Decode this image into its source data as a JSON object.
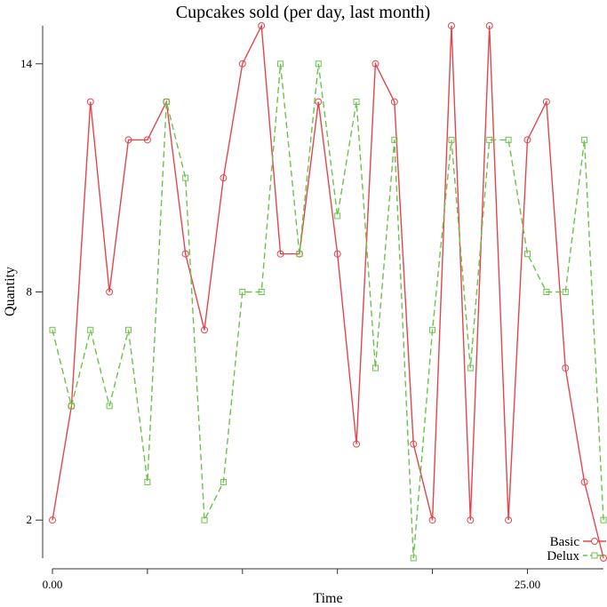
{
  "chart_data": {
    "type": "line",
    "title": "Cupcakes sold (per day, last month)",
    "xlabel": "Time",
    "ylabel": "Quantity",
    "x_tick_labels": [
      {
        "value": 0,
        "label": "0.00"
      },
      {
        "value": 25,
        "label": "25.00"
      }
    ],
    "x_minor_ticks": [
      0,
      5,
      10,
      15,
      20,
      25
    ],
    "y_ticks": [
      2,
      8,
      14
    ],
    "xlim": [
      0,
      29
    ],
    "ylim": [
      1,
      15
    ],
    "legend_position": "bottom-right",
    "x": [
      0,
      1,
      2,
      3,
      4,
      5,
      6,
      7,
      8,
      9,
      10,
      11,
      12,
      13,
      14,
      15,
      16,
      17,
      18,
      19,
      20,
      21,
      22,
      23,
      24,
      25,
      26,
      27,
      28,
      29
    ],
    "series": [
      {
        "name": "Basic",
        "color": "#e0474c",
        "dash": "solid",
        "marker": "circle",
        "values": [
          2,
          5,
          13,
          8,
          12,
          12,
          13,
          9,
          7,
          11,
          14,
          15,
          9,
          9,
          13,
          9,
          4,
          14,
          13,
          4,
          2,
          15,
          2,
          15,
          2,
          12,
          13,
          6,
          3,
          1
        ]
      },
      {
        "name": "Delux",
        "color": "#6cc24a",
        "dash": "dashed",
        "marker": "square",
        "values": [
          7,
          5,
          7,
          5,
          7,
          3,
          13,
          11,
          2,
          3,
          8,
          8,
          14,
          9,
          14,
          10,
          13,
          6,
          12,
          1,
          7,
          12,
          6,
          12,
          12,
          9,
          8,
          8,
          12,
          2
        ]
      }
    ]
  }
}
